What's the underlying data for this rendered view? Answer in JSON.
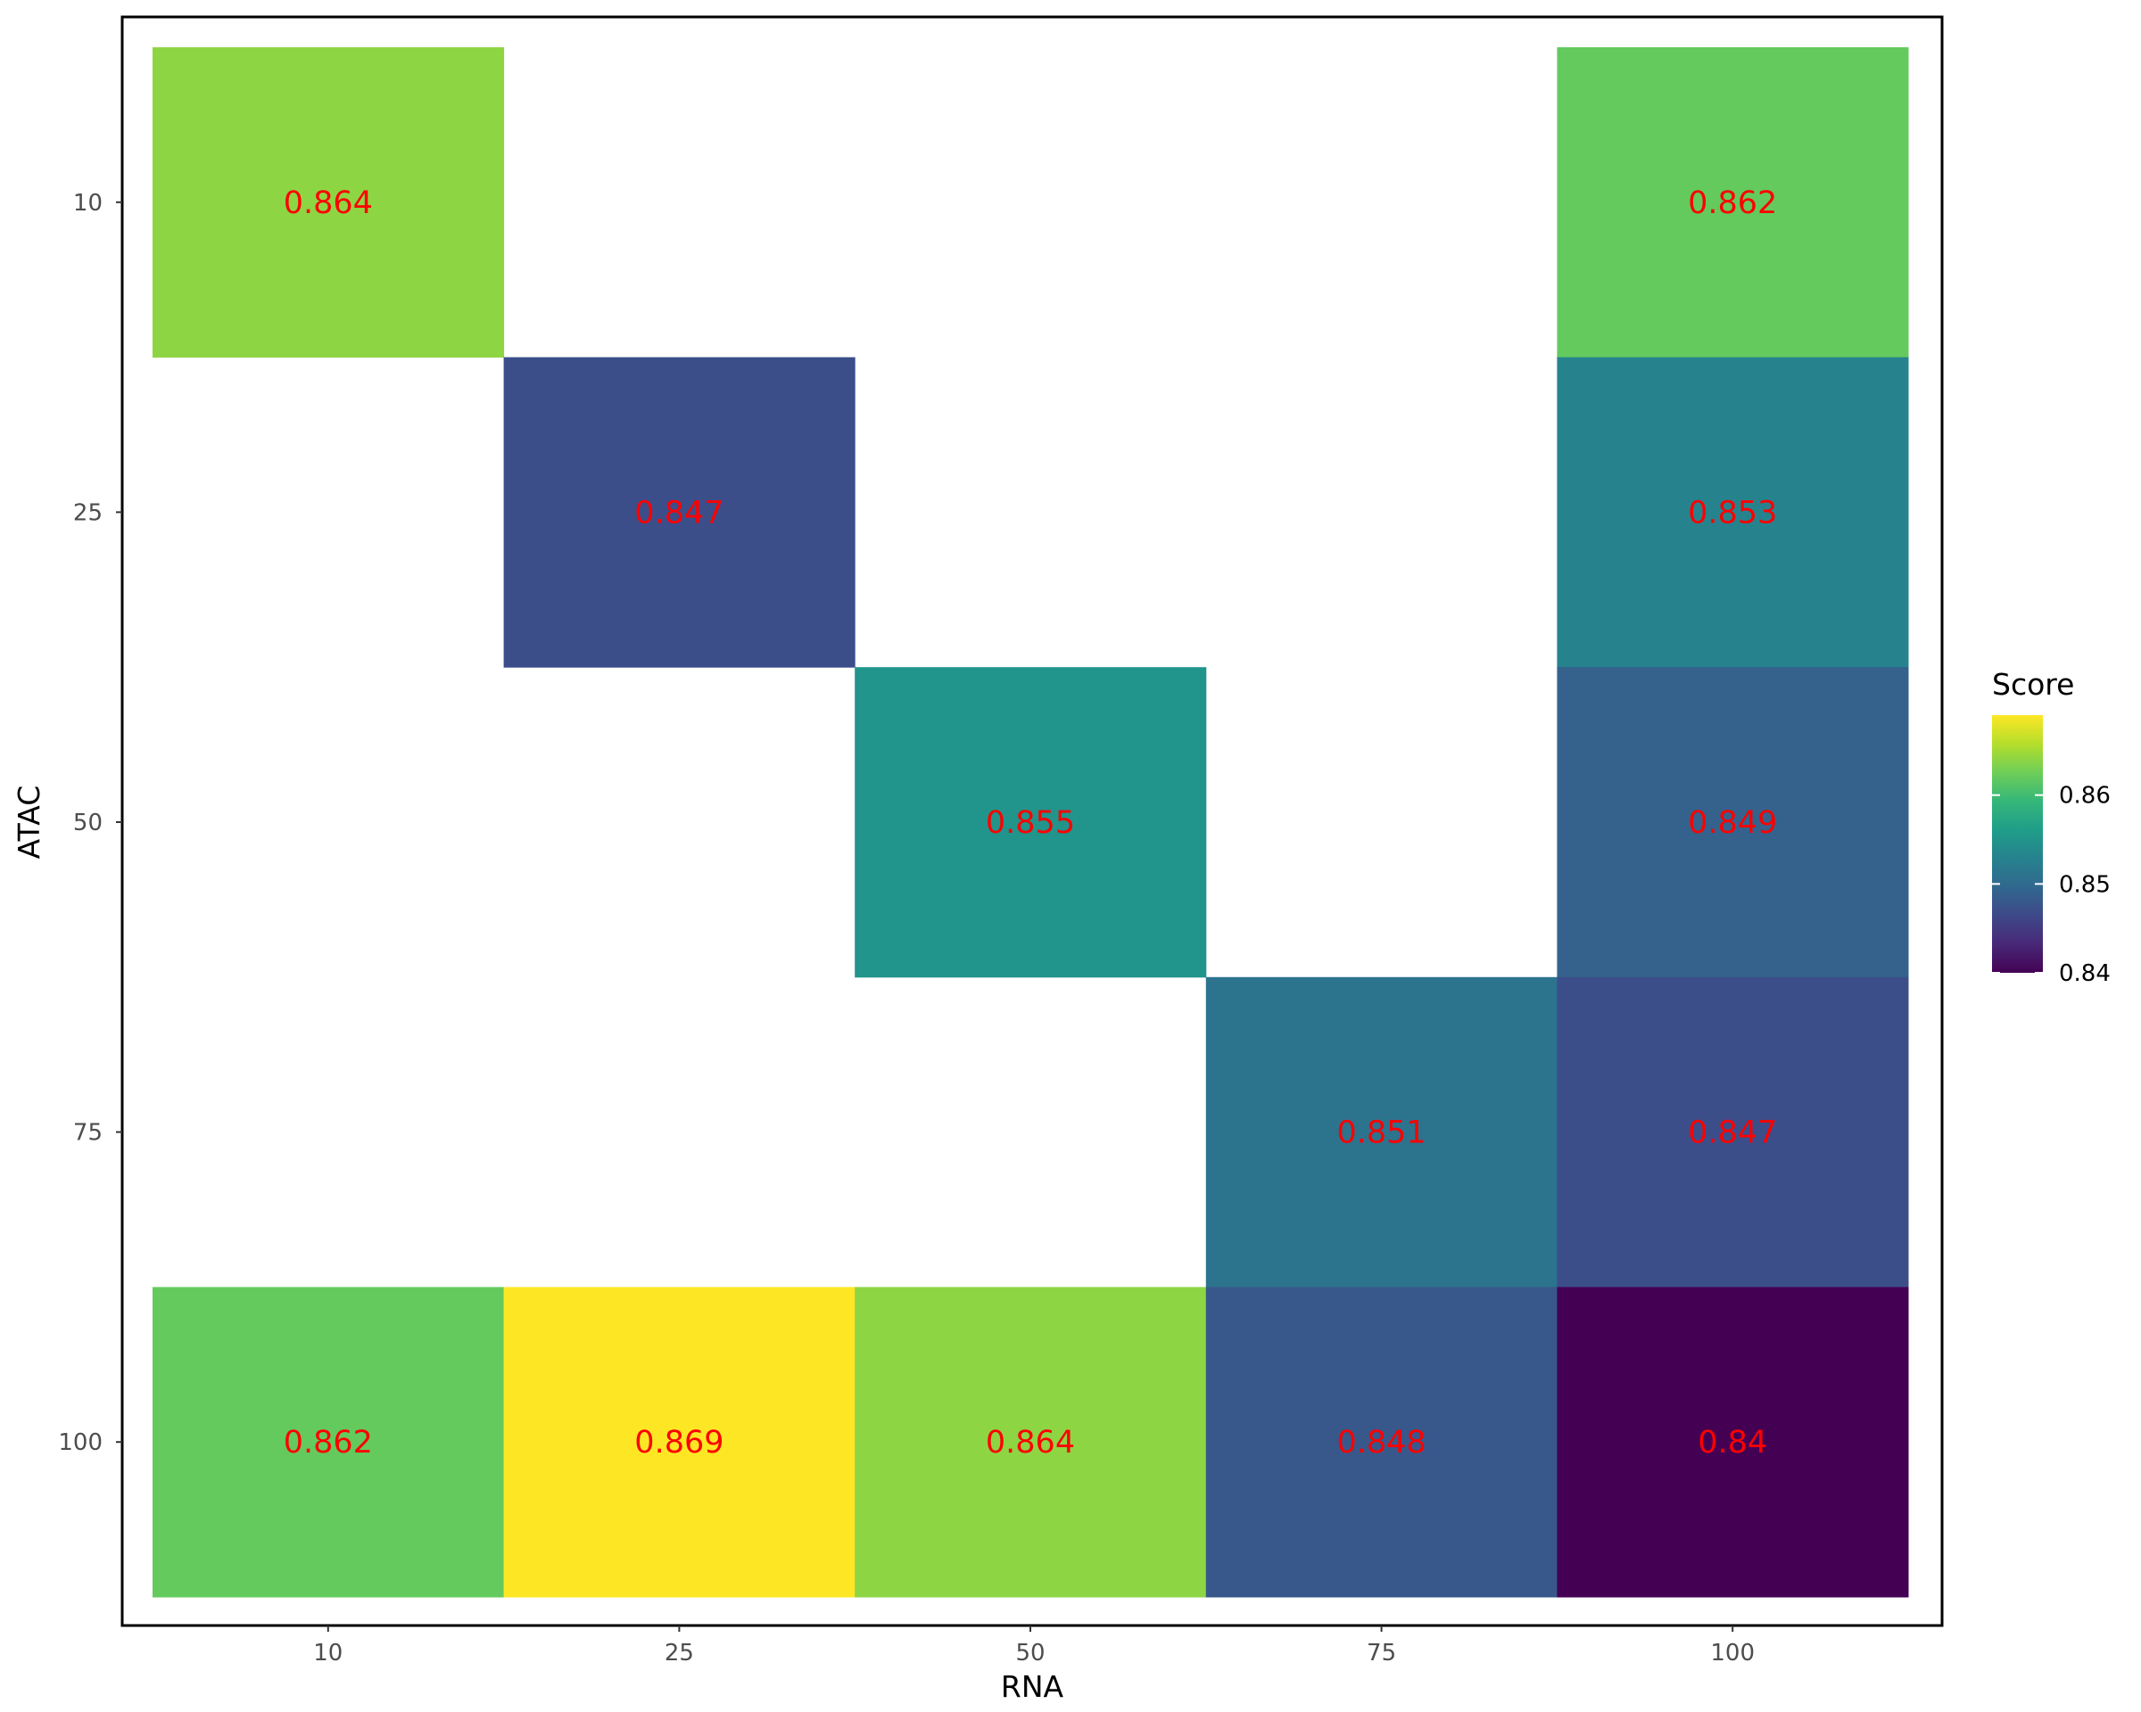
{
  "chart_data": {
    "type": "heatmap",
    "xlabel": "RNA",
    "ylabel": "ATAC",
    "x_categories": [
      "10",
      "25",
      "50",
      "75",
      "100"
    ],
    "y_categories": [
      "10",
      "25",
      "50",
      "75",
      "100"
    ],
    "cells": [
      {
        "x": "10",
        "y": "10",
        "value": 0.864,
        "label": "0.864"
      },
      {
        "x": "100",
        "y": "10",
        "value": 0.862,
        "label": "0.862"
      },
      {
        "x": "25",
        "y": "25",
        "value": 0.847,
        "label": "0.847"
      },
      {
        "x": "100",
        "y": "25",
        "value": 0.853,
        "label": "0.853"
      },
      {
        "x": "50",
        "y": "50",
        "value": 0.855,
        "label": "0.855"
      },
      {
        "x": "100",
        "y": "50",
        "value": 0.849,
        "label": "0.849"
      },
      {
        "x": "75",
        "y": "75",
        "value": 0.851,
        "label": "0.851"
      },
      {
        "x": "100",
        "y": "75",
        "value": 0.847,
        "label": "0.847"
      },
      {
        "x": "10",
        "y": "100",
        "value": 0.862,
        "label": "0.862"
      },
      {
        "x": "25",
        "y": "100",
        "value": 0.869,
        "label": "0.869"
      },
      {
        "x": "50",
        "y": "100",
        "value": 0.864,
        "label": "0.864"
      },
      {
        "x": "75",
        "y": "100",
        "value": 0.848,
        "label": "0.848"
      },
      {
        "x": "100",
        "y": "100",
        "value": 0.84,
        "label": "0.84"
      }
    ],
    "legend": {
      "title": "Score",
      "ticks": [
        0.84,
        0.85,
        0.86
      ],
      "tick_labels": [
        "0.84",
        "0.85",
        "0.86"
      ],
      "range": [
        0.84,
        0.869
      ],
      "placement": "right"
    },
    "colormap": "viridis",
    "label_color": "#ff0000",
    "grid": false
  }
}
